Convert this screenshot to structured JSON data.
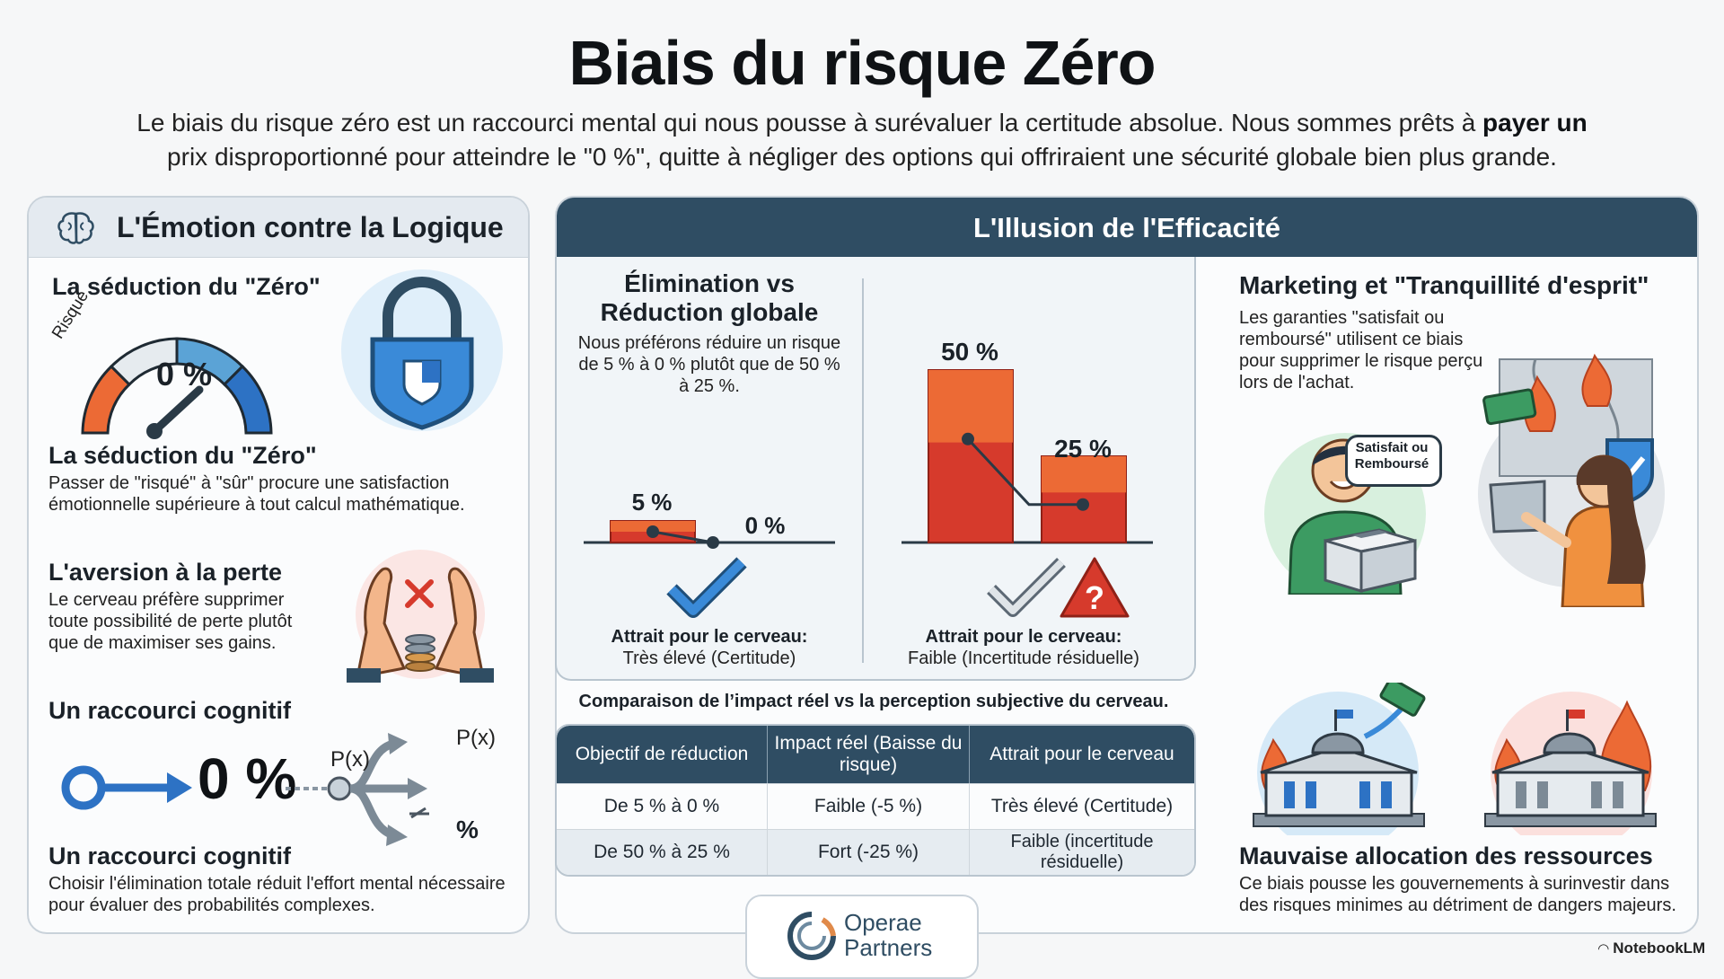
{
  "header": {
    "title": "Biais du risque Zéro",
    "intro_1": "Le biais du risque zéro est un raccourci mental qui nous pousse à surévaluer la certitude absolue. Nous sommes prêts à ",
    "intro_bold": "payer un",
    "intro_2": "prix disproportionné pour atteindre le \"0 %\", quitte à négliger des options qui offriraient une sécurité globale bien plus grande."
  },
  "left": {
    "title": "L'Émotion contre la Logique",
    "s1": {
      "heading": "La séduction du \"Zéro\"",
      "gauge_label": "Risqué",
      "gauge_value": "0 %",
      "subheading": "La séduction du \"Zéro\"",
      "text": "Passer de \"risqué\" à \"sûr\" procure une satisfaction émotionnelle supérieure à tout calcul mathématique."
    },
    "s2": {
      "heading": "L'aversion à la perte",
      "text": "Le cerveau préfère supprimer toute possibilité de perte plutôt que de maximiser ses gains."
    },
    "s3": {
      "heading": "Un raccourci cognitif",
      "zero": "0 %",
      "px_a": "P(x)",
      "px_b": "P(x)",
      "pct": "%",
      "subheading": "Un raccourci cognitif",
      "text": "Choisir l'élimination totale réduit l'effort mental nécessaire pour évaluer des probabilités complexes."
    }
  },
  "middle": {
    "title": "L'Illusion de l'Efficacité",
    "elim_heading": "Élimination vs Réduction globale",
    "elim_text": "Nous préférons réduire un risque de 5 % à 0 % plutôt que de 50 % à 25 %.",
    "chart_left": {
      "labels": [
        "5 %",
        "0 %"
      ],
      "values": [
        5,
        0
      ],
      "caption_bold": "Attrait pour le cerveau:",
      "caption": "Très élevé (Certitude)"
    },
    "chart_right": {
      "labels": [
        "50 %",
        "25 %"
      ],
      "values": [
        50,
        25
      ],
      "caption_bold": "Attrait pour le cerveau:",
      "caption": "Faible (Incertitude résiduelle)"
    },
    "table_caption": "Comparaison de l’impact réel vs la perception subjective du cerveau.",
    "table": {
      "headers": [
        "Objectif de réduction",
        "Impact réel (Baisse du risque)",
        "Attrait pour le cerveau"
      ],
      "rows": [
        [
          "De 5 % à 0 %",
          "Faible (-5 %)",
          "Très élevé (Certitude)"
        ],
        [
          "De 50 % à 25 %",
          "Fort (-25 %)",
          "Faible (incertitude résiduelle)"
        ]
      ]
    }
  },
  "right": {
    "marketing_heading": "Marketing et \"Tranquillité d'esprit\"",
    "marketing_text": "Les garanties \"satisfait ou remboursé\" utilisent ce biais pour supprimer le risque perçu lors de l'achat.",
    "bubble": "Satisfait ou Remboursé",
    "alloc_heading": "Mauvaise allocation des ressources",
    "alloc_text": "Ce biais pousse les gouvernements à surinvestir dans des risques minimes au détriment de dangers majeurs."
  },
  "footer": {
    "brand_1": "Operae",
    "brand_2": "Partners",
    "watermark": "NotebookLM"
  },
  "colors": {
    "navy": "#2f4d63",
    "red": "#d63a2c",
    "orange": "#ec6a35",
    "blue": "#2d72c4",
    "panel_head": "#e4eaf0"
  }
}
